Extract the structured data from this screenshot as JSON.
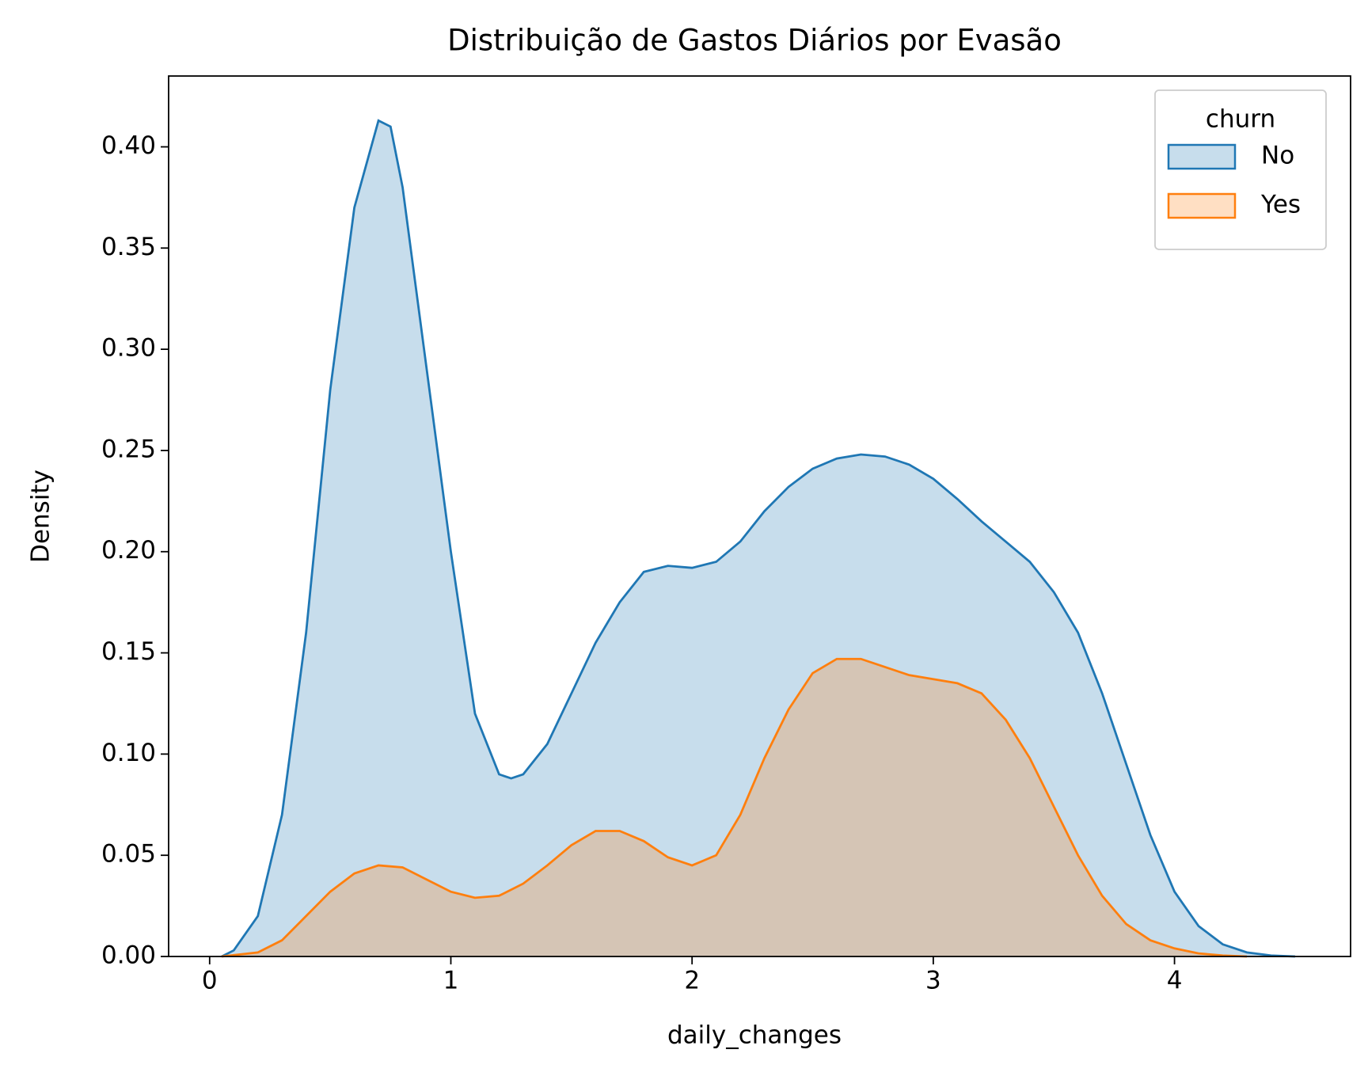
{
  "chart_data": {
    "type": "kde",
    "title": "Distribuição de Gastos Diários por Evasão",
    "xlabel": "daily_changes",
    "ylabel": "Density",
    "legend_title": "churn",
    "legend": "upper right",
    "xlim": [
      -0.17,
      4.73
    ],
    "ylim": [
      0,
      0.435
    ],
    "xticks": [
      0,
      1,
      2,
      3,
      4
    ],
    "yticks": [
      {
        "value": 0,
        "label": "0.00"
      },
      {
        "value": 0.05,
        "label": "0.05"
      },
      {
        "value": 0.1,
        "label": "0.10"
      },
      {
        "value": 0.15,
        "label": "0.15"
      },
      {
        "value": 0.2,
        "label": "0.20"
      },
      {
        "value": 0.25,
        "label": "0.25"
      },
      {
        "value": 0.3,
        "label": "0.30"
      },
      {
        "value": 0.35,
        "label": "0.35"
      },
      {
        "value": 0.4,
        "label": "0.40"
      }
    ],
    "series": [
      {
        "name": "No",
        "color": "#1f77b4",
        "x": [
          0.05,
          0.1,
          0.2,
          0.3,
          0.4,
          0.5,
          0.6,
          0.7,
          0.75,
          0.8,
          0.9,
          1.0,
          1.1,
          1.2,
          1.25,
          1.3,
          1.4,
          1.5,
          1.6,
          1.7,
          1.8,
          1.9,
          2.0,
          2.1,
          2.2,
          2.3,
          2.4,
          2.5,
          2.6,
          2.7,
          2.8,
          2.9,
          3.0,
          3.1,
          3.2,
          3.3,
          3.4,
          3.5,
          3.6,
          3.7,
          3.8,
          3.9,
          4.0,
          4.1,
          4.2,
          4.3,
          4.4,
          4.5
        ],
        "values": [
          0.0,
          0.003,
          0.02,
          0.07,
          0.16,
          0.28,
          0.37,
          0.413,
          0.41,
          0.38,
          0.29,
          0.2,
          0.12,
          0.09,
          0.088,
          0.09,
          0.105,
          0.13,
          0.155,
          0.175,
          0.19,
          0.193,
          0.192,
          0.195,
          0.205,
          0.22,
          0.232,
          0.241,
          0.246,
          0.248,
          0.247,
          0.243,
          0.236,
          0.226,
          0.215,
          0.205,
          0.195,
          0.18,
          0.16,
          0.13,
          0.095,
          0.06,
          0.032,
          0.015,
          0.006,
          0.002,
          0.0005,
          0.0
        ]
      },
      {
        "name": "Yes",
        "color": "#ff7f0e",
        "x": [
          0.05,
          0.2,
          0.3,
          0.4,
          0.5,
          0.6,
          0.7,
          0.8,
          0.9,
          1.0,
          1.1,
          1.2,
          1.3,
          1.4,
          1.5,
          1.6,
          1.7,
          1.8,
          1.9,
          2.0,
          2.1,
          2.2,
          2.3,
          2.4,
          2.5,
          2.6,
          2.7,
          2.8,
          2.9,
          3.0,
          3.1,
          3.2,
          3.3,
          3.4,
          3.5,
          3.6,
          3.7,
          3.8,
          3.9,
          4.0,
          4.1,
          4.2,
          4.3
        ],
        "values": [
          0.0,
          0.002,
          0.008,
          0.02,
          0.032,
          0.041,
          0.045,
          0.044,
          0.038,
          0.032,
          0.029,
          0.03,
          0.036,
          0.045,
          0.055,
          0.062,
          0.062,
          0.057,
          0.049,
          0.045,
          0.05,
          0.07,
          0.098,
          0.122,
          0.14,
          0.147,
          0.147,
          0.143,
          0.139,
          0.137,
          0.135,
          0.13,
          0.117,
          0.098,
          0.074,
          0.05,
          0.03,
          0.016,
          0.008,
          0.004,
          0.0015,
          0.0005,
          0.0
        ]
      }
    ]
  }
}
